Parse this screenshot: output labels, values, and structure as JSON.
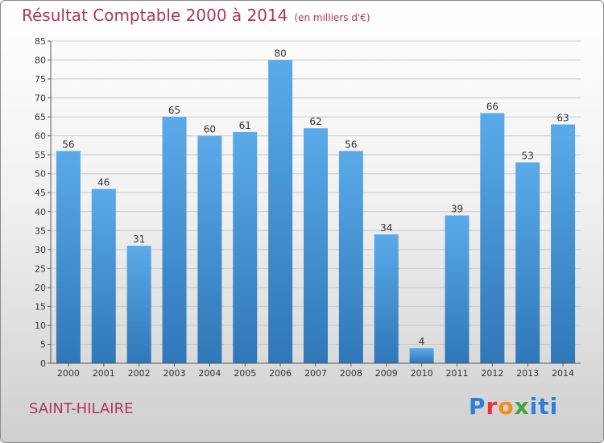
{
  "header": {
    "title": "Résultat Comptable 2000 à 2014",
    "subtitle": "(en milliers d'€)"
  },
  "footer": {
    "city": "SAINT-HILAIRE",
    "logo_text": "Proxiti"
  },
  "colors": {
    "title": "#b0355a",
    "bar_top": "#5aaaea",
    "bar_bottom": "#2f77b8",
    "grid": "#c8c8c8"
  },
  "chart_data": {
    "type": "bar",
    "categories": [
      "2000",
      "2001",
      "2002",
      "2003",
      "2004",
      "2005",
      "2006",
      "2007",
      "2008",
      "2009",
      "2010",
      "2011",
      "2012",
      "2013",
      "2014"
    ],
    "values": [
      56,
      46,
      31,
      65,
      60,
      61,
      80,
      62,
      56,
      34,
      4,
      39,
      66,
      53,
      63
    ],
    "title": "Résultat Comptable 2000 à 2014",
    "ylim": [
      0,
      85
    ],
    "yticks": [
      0,
      5,
      10,
      15,
      20,
      25,
      30,
      35,
      40,
      45,
      50,
      55,
      60,
      65,
      70,
      75,
      80,
      85
    ],
    "grid": "horizontal"
  }
}
